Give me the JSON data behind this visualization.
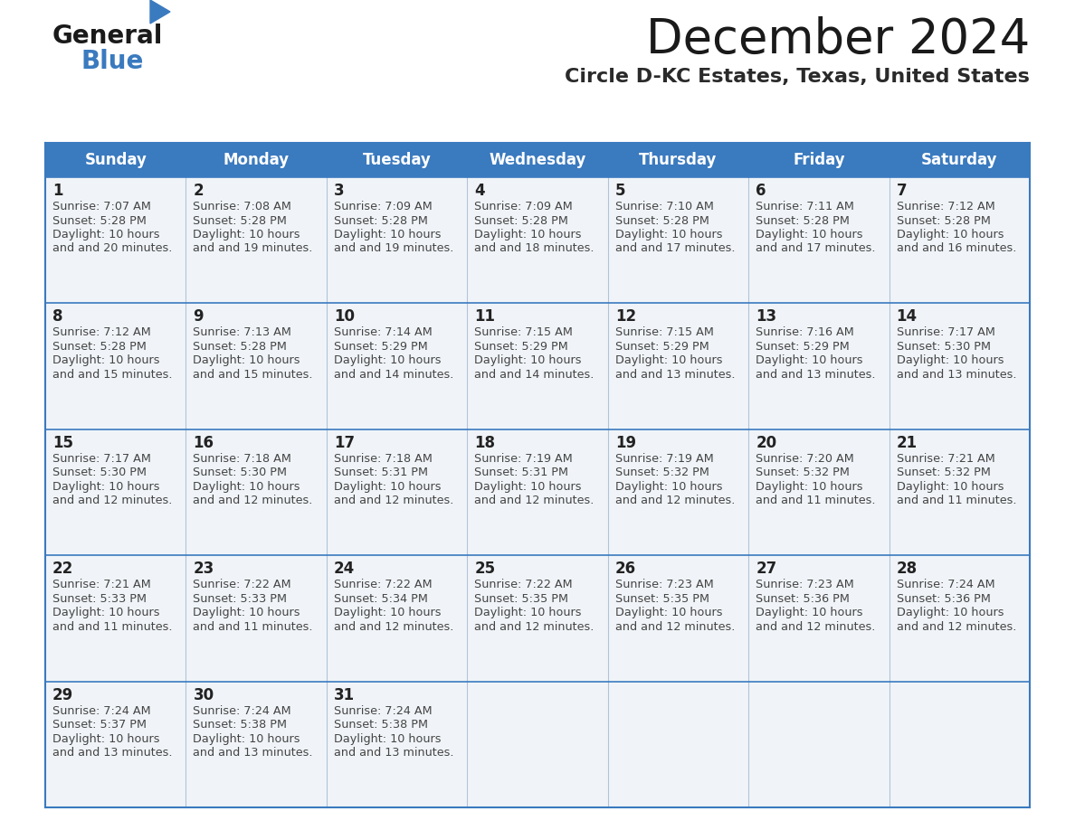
{
  "title": "December 2024",
  "subtitle": "Circle D-KC Estates, Texas, United States",
  "header_color": "#3a7abf",
  "header_text_color": "#ffffff",
  "cell_bg_color": "#f0f4f8",
  "day_number_color": "#222222",
  "cell_text_color": "#444444",
  "border_color": "#3a7abf",
  "separator_color": "#b0c4d8",
  "days_of_week": [
    "Sunday",
    "Monday",
    "Tuesday",
    "Wednesday",
    "Thursday",
    "Friday",
    "Saturday"
  ],
  "calendar": [
    [
      {
        "day": 1,
        "sunrise": "7:07 AM",
        "sunset": "5:28 PM",
        "daylight": "10 hours\nand 20 minutes."
      },
      {
        "day": 2,
        "sunrise": "7:08 AM",
        "sunset": "5:28 PM",
        "daylight": "10 hours\nand 19 minutes."
      },
      {
        "day": 3,
        "sunrise": "7:09 AM",
        "sunset": "5:28 PM",
        "daylight": "10 hours\nand 19 minutes."
      },
      {
        "day": 4,
        "sunrise": "7:09 AM",
        "sunset": "5:28 PM",
        "daylight": "10 hours\nand 18 minutes."
      },
      {
        "day": 5,
        "sunrise": "7:10 AM",
        "sunset": "5:28 PM",
        "daylight": "10 hours\nand 17 minutes."
      },
      {
        "day": 6,
        "sunrise": "7:11 AM",
        "sunset": "5:28 PM",
        "daylight": "10 hours\nand 17 minutes."
      },
      {
        "day": 7,
        "sunrise": "7:12 AM",
        "sunset": "5:28 PM",
        "daylight": "10 hours\nand 16 minutes."
      }
    ],
    [
      {
        "day": 8,
        "sunrise": "7:12 AM",
        "sunset": "5:28 PM",
        "daylight": "10 hours\nand 15 minutes."
      },
      {
        "day": 9,
        "sunrise": "7:13 AM",
        "sunset": "5:28 PM",
        "daylight": "10 hours\nand 15 minutes."
      },
      {
        "day": 10,
        "sunrise": "7:14 AM",
        "sunset": "5:29 PM",
        "daylight": "10 hours\nand 14 minutes."
      },
      {
        "day": 11,
        "sunrise": "7:15 AM",
        "sunset": "5:29 PM",
        "daylight": "10 hours\nand 14 minutes."
      },
      {
        "day": 12,
        "sunrise": "7:15 AM",
        "sunset": "5:29 PM",
        "daylight": "10 hours\nand 13 minutes."
      },
      {
        "day": 13,
        "sunrise": "7:16 AM",
        "sunset": "5:29 PM",
        "daylight": "10 hours\nand 13 minutes."
      },
      {
        "day": 14,
        "sunrise": "7:17 AM",
        "sunset": "5:30 PM",
        "daylight": "10 hours\nand 13 minutes."
      }
    ],
    [
      {
        "day": 15,
        "sunrise": "7:17 AM",
        "sunset": "5:30 PM",
        "daylight": "10 hours\nand 12 minutes."
      },
      {
        "day": 16,
        "sunrise": "7:18 AM",
        "sunset": "5:30 PM",
        "daylight": "10 hours\nand 12 minutes."
      },
      {
        "day": 17,
        "sunrise": "7:18 AM",
        "sunset": "5:31 PM",
        "daylight": "10 hours\nand 12 minutes."
      },
      {
        "day": 18,
        "sunrise": "7:19 AM",
        "sunset": "5:31 PM",
        "daylight": "10 hours\nand 12 minutes."
      },
      {
        "day": 19,
        "sunrise": "7:19 AM",
        "sunset": "5:32 PM",
        "daylight": "10 hours\nand 12 minutes."
      },
      {
        "day": 20,
        "sunrise": "7:20 AM",
        "sunset": "5:32 PM",
        "daylight": "10 hours\nand 11 minutes."
      },
      {
        "day": 21,
        "sunrise": "7:21 AM",
        "sunset": "5:32 PM",
        "daylight": "10 hours\nand 11 minutes."
      }
    ],
    [
      {
        "day": 22,
        "sunrise": "7:21 AM",
        "sunset": "5:33 PM",
        "daylight": "10 hours\nand 11 minutes."
      },
      {
        "day": 23,
        "sunrise": "7:22 AM",
        "sunset": "5:33 PM",
        "daylight": "10 hours\nand 11 minutes."
      },
      {
        "day": 24,
        "sunrise": "7:22 AM",
        "sunset": "5:34 PM",
        "daylight": "10 hours\nand 12 minutes."
      },
      {
        "day": 25,
        "sunrise": "7:22 AM",
        "sunset": "5:35 PM",
        "daylight": "10 hours\nand 12 minutes."
      },
      {
        "day": 26,
        "sunrise": "7:23 AM",
        "sunset": "5:35 PM",
        "daylight": "10 hours\nand 12 minutes."
      },
      {
        "day": 27,
        "sunrise": "7:23 AM",
        "sunset": "5:36 PM",
        "daylight": "10 hours\nand 12 minutes."
      },
      {
        "day": 28,
        "sunrise": "7:24 AM",
        "sunset": "5:36 PM",
        "daylight": "10 hours\nand 12 minutes."
      }
    ],
    [
      {
        "day": 29,
        "sunrise": "7:24 AM",
        "sunset": "5:37 PM",
        "daylight": "10 hours\nand 13 minutes."
      },
      {
        "day": 30,
        "sunrise": "7:24 AM",
        "sunset": "5:38 PM",
        "daylight": "10 hours\nand 13 minutes."
      },
      {
        "day": 31,
        "sunrise": "7:24 AM",
        "sunset": "5:38 PM",
        "daylight": "10 hours\nand 13 minutes."
      },
      null,
      null,
      null,
      null
    ]
  ],
  "fig_bg_color": "#ffffff",
  "logo_triangle_color": "#3a7abf"
}
